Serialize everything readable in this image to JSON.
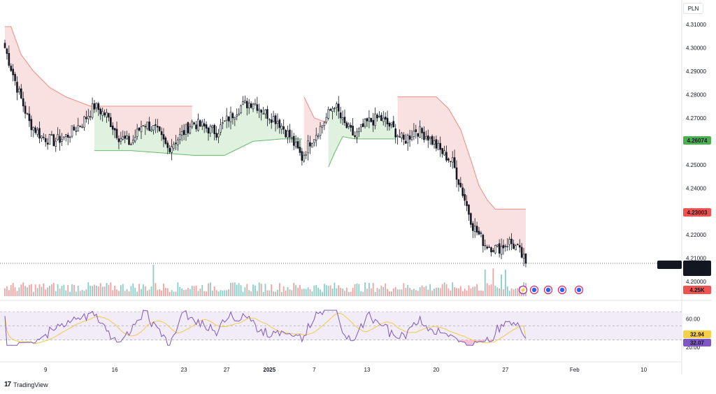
{
  "header": {
    "currency": "PLN"
  },
  "brand": {
    "logo_glyph": "17",
    "name": "TradingView"
  },
  "colors": {
    "bull": "#26a69a",
    "bear": "#ef5350",
    "candle": "#131722",
    "upper_band": "#f28b82",
    "upper_fill": "#f8d7d7",
    "lower_band": "#66bb6a",
    "lower_fill": "#d6ecd6",
    "rsi_line": "#7e57c2",
    "rsi_ma": "#f2c94c",
    "rsi_bg": "#ede7f6",
    "tag_green": "#4caf50",
    "tag_red": "#ef5350",
    "tag_black": "#131722",
    "tag_yellow": "#f7d046",
    "tag_purple": "#7e57c2"
  },
  "price_axis": {
    "labels": [
      "4.31000",
      "4.30000",
      "4.29000",
      "4.28000",
      "4.27000",
      "4.25000",
      "4.24000",
      "4.22000",
      "4.21000",
      "4.20000"
    ],
    "tags": {
      "green_value": "4.26074",
      "red_value": "4.23003",
      "symbol": "EURPLN",
      "last_price": "4.20786",
      "countdown": "37:21",
      "volume": "4.25K"
    }
  },
  "rsi_axis": {
    "labels": [
      "60.00",
      "20.00"
    ],
    "tags": {
      "rsi_ma_value": "32.94",
      "rsi_value": "32.07"
    }
  },
  "time_axis": {
    "labels": [
      "9",
      "16",
      "23",
      "27",
      "2025",
      "7",
      "13",
      "20",
      "27",
      "Feb",
      "10"
    ],
    "bold": [
      "2025"
    ]
  },
  "chart_data": [
    {
      "type": "candlestick",
      "symbol": "EURPLN",
      "y_axis": {
        "ylim": [
          4.1935,
          4.318
        ],
        "ticks": [
          4.31,
          4.3,
          4.29,
          4.28,
          4.27,
          4.25,
          4.24,
          4.22,
          4.21,
          4.2
        ]
      },
      "last_price": 4.20786,
      "anchors": [
        {
          "i": 0,
          "p": 4.3
        },
        {
          "i": 6,
          "p": 4.283
        },
        {
          "i": 12,
          "p": 4.268
        },
        {
          "i": 18,
          "p": 4.262
        },
        {
          "i": 24,
          "p": 4.26
        },
        {
          "i": 30,
          "p": 4.262
        },
        {
          "i": 38,
          "p": 4.268
        },
        {
          "i": 44,
          "p": 4.275
        },
        {
          "i": 50,
          "p": 4.271
        },
        {
          "i": 56,
          "p": 4.262
        },
        {
          "i": 62,
          "p": 4.259
        },
        {
          "i": 68,
          "p": 4.268
        },
        {
          "i": 74,
          "p": 4.265
        },
        {
          "i": 80,
          "p": 4.257
        },
        {
          "i": 86,
          "p": 4.262
        },
        {
          "i": 92,
          "p": 4.268
        },
        {
          "i": 98,
          "p": 4.266
        },
        {
          "i": 104,
          "p": 4.264
        },
        {
          "i": 110,
          "p": 4.27
        },
        {
          "i": 116,
          "p": 4.275
        },
        {
          "i": 122,
          "p": 4.277
        },
        {
          "i": 128,
          "p": 4.272
        },
        {
          "i": 134,
          "p": 4.269
        },
        {
          "i": 140,
          "p": 4.262
        },
        {
          "i": 146,
          "p": 4.253
        },
        {
          "i": 150,
          "p": 4.26
        },
        {
          "i": 156,
          "p": 4.267
        },
        {
          "i": 162,
          "p": 4.276
        },
        {
          "i": 166,
          "p": 4.268
        },
        {
          "i": 172,
          "p": 4.262
        },
        {
          "i": 178,
          "p": 4.268
        },
        {
          "i": 184,
          "p": 4.27
        },
        {
          "i": 190,
          "p": 4.266
        },
        {
          "i": 196,
          "p": 4.26
        },
        {
          "i": 202,
          "p": 4.265
        },
        {
          "i": 208,
          "p": 4.262
        },
        {
          "i": 214,
          "p": 4.256
        },
        {
          "i": 220,
          "p": 4.251
        },
        {
          "i": 225,
          "p": 4.238
        },
        {
          "i": 230,
          "p": 4.224
        },
        {
          "i": 236,
          "p": 4.216
        },
        {
          "i": 242,
          "p": 4.214
        },
        {
          "i": 248,
          "p": 4.217
        },
        {
          "i": 252,
          "p": 4.214
        },
        {
          "i": 256,
          "p": 4.208
        }
      ],
      "supertrend": {
        "upper": [
          {
            "i": 0,
            "p": 4.309
          },
          {
            "i": 3,
            "p": 4.309
          },
          {
            "i": 8,
            "p": 4.297
          },
          {
            "i": 14,
            "p": 4.29
          },
          {
            "i": 22,
            "p": 4.283
          },
          {
            "i": 30,
            "p": 4.279
          },
          {
            "i": 36,
            "p": 4.277
          },
          {
            "i": 42,
            "p": 4.275
          },
          {
            "i": 62,
            "p": 4.275
          },
          {
            "i": 92,
            "p": 4.275
          },
          {
            "i": 147,
            "p": 4.279
          },
          {
            "i": 152,
            "p": 4.27
          },
          {
            "i": 158,
            "p": 4.268
          },
          {
            "i": 193,
            "p": 4.279
          },
          {
            "i": 212,
            "p": 4.279
          },
          {
            "i": 218,
            "p": 4.274
          },
          {
            "i": 224,
            "p": 4.265
          },
          {
            "i": 229,
            "p": 4.252
          },
          {
            "i": 233,
            "p": 4.241
          },
          {
            "i": 237,
            "p": 4.235
          },
          {
            "i": 241,
            "p": 4.231
          },
          {
            "i": 256,
            "p": 4.231
          }
        ],
        "lower": [
          {
            "i": 44,
            "p": 4.256
          },
          {
            "i": 62,
            "p": 4.256
          },
          {
            "i": 93,
            "p": 4.254
          },
          {
            "i": 108,
            "p": 4.254
          },
          {
            "i": 122,
            "p": 4.26
          },
          {
            "i": 136,
            "p": 4.261
          },
          {
            "i": 146,
            "p": 4.261
          },
          {
            "i": 159,
            "p": 4.249
          },
          {
            "i": 162,
            "p": 4.255
          },
          {
            "i": 166,
            "p": 4.262
          },
          {
            "i": 172,
            "p": 4.261
          },
          {
            "i": 192,
            "p": 4.261
          }
        ]
      }
    },
    {
      "type": "bar",
      "name": "Volume",
      "display_value": "4.25K",
      "note": "bars colored green on up candles, red on down candles"
    },
    {
      "type": "line",
      "name": "RSI",
      "y_axis": {
        "ylim": [
          5,
          80
        ],
        "ticks": [
          60,
          20
        ],
        "band_upper": 70,
        "band_mid": 50,
        "band_lower": 30
      },
      "last_value": 32.07,
      "ma_last_value": 32.94
    }
  ]
}
